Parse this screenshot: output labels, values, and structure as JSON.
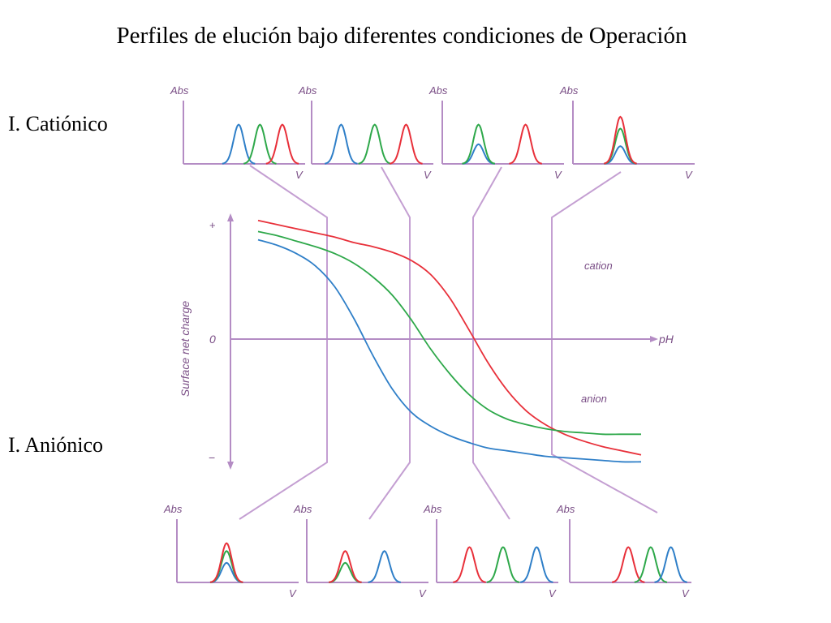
{
  "slide": {
    "title": "Perfiles de elución bajo diferentes condiciones de Operación",
    "label_cationic": "I. Catiónico",
    "label_anionic": "I. Aniónico"
  },
  "colors": {
    "axis": "#b48cc4",
    "red": "#e8303a",
    "green": "#2ea84a",
    "blue": "#2f7fc8"
  },
  "chart_data": [
    {
      "type": "line",
      "title": "",
      "xlabel": "pH",
      "ylabel": "Surface net charge",
      "y_ticks": [
        "+",
        "0",
        "−"
      ],
      "annotations": [
        "cation",
        "anion"
      ],
      "ylim": [
        -1,
        1
      ],
      "xlim": [
        0,
        1
      ],
      "x": [
        0,
        0.05,
        0.1,
        0.15,
        0.2,
        0.25,
        0.3,
        0.35,
        0.4,
        0.45,
        0.5,
        0.55,
        0.6,
        0.65,
        0.7,
        0.75,
        0.8,
        0.85,
        0.9,
        0.95,
        1.0
      ],
      "series": [
        {
          "color": "red",
          "values": [
            0.86,
            0.83,
            0.8,
            0.77,
            0.74,
            0.7,
            0.67,
            0.63,
            0.57,
            0.47,
            0.3,
            0.07,
            -0.17,
            -0.37,
            -0.52,
            -0.62,
            -0.69,
            -0.74,
            -0.78,
            -0.81,
            -0.84
          ]
        },
        {
          "color": "green",
          "values": [
            0.78,
            0.75,
            0.71,
            0.67,
            0.62,
            0.55,
            0.45,
            0.32,
            0.14,
            -0.07,
            -0.25,
            -0.4,
            -0.51,
            -0.58,
            -0.62,
            -0.65,
            -0.67,
            -0.68,
            -0.69,
            -0.69,
            -0.69
          ]
        },
        {
          "color": "blue",
          "values": [
            0.72,
            0.68,
            0.62,
            0.53,
            0.38,
            0.15,
            -0.12,
            -0.36,
            -0.53,
            -0.63,
            -0.7,
            -0.75,
            -0.79,
            -0.81,
            -0.83,
            -0.85,
            -0.86,
            -0.87,
            -0.88,
            -0.89,
            -0.89
          ]
        }
      ]
    },
    {
      "type": "line",
      "title": "",
      "xlabel": "V",
      "ylabel": "Abs",
      "group": "cationic elution profiles",
      "panels": [
        {
          "peaks": [
            {
              "color": "blue",
              "x": 0.45,
              "height": 1.0
            },
            {
              "color": "green",
              "x": 0.64,
              "height": 1.0
            },
            {
              "color": "red",
              "x": 0.84,
              "height": 1.0
            }
          ]
        },
        {
          "peaks": [
            {
              "color": "blue",
              "x": 0.22,
              "height": 1.0
            },
            {
              "color": "green",
              "x": 0.52,
              "height": 1.0
            },
            {
              "color": "red",
              "x": 0.8,
              "height": 1.0
            }
          ]
        },
        {
          "peaks": [
            {
              "color": "blue",
              "x": 0.28,
              "height": 0.5
            },
            {
              "color": "green",
              "x": 0.28,
              "height": 1.0
            },
            {
              "color": "red",
              "x": 0.7,
              "height": 1.0
            }
          ]
        },
        {
          "peaks": [
            {
              "color": "blue",
              "x": 0.38,
              "height": 0.45
            },
            {
              "color": "green",
              "x": 0.38,
              "height": 0.9
            },
            {
              "color": "red",
              "x": 0.38,
              "height": 1.2
            }
          ]
        }
      ]
    },
    {
      "type": "line",
      "title": "",
      "xlabel": "V",
      "ylabel": "Abs",
      "group": "anionic elution profiles",
      "panels": [
        {
          "peaks": [
            {
              "color": "blue",
              "x": 0.4,
              "height": 0.5
            },
            {
              "color": "green",
              "x": 0.4,
              "height": 0.8
            },
            {
              "color": "red",
              "x": 0.4,
              "height": 1.0
            }
          ]
        },
        {
          "peaks": [
            {
              "color": "blue",
              "x": 0.65,
              "height": 0.8
            },
            {
              "color": "green",
              "x": 0.3,
              "height": 0.5
            },
            {
              "color": "red",
              "x": 0.3,
              "height": 0.8
            }
          ]
        },
        {
          "peaks": [
            {
              "color": "red",
              "x": 0.25,
              "height": 0.9
            },
            {
              "color": "green",
              "x": 0.55,
              "height": 0.9
            },
            {
              "color": "blue",
              "x": 0.85,
              "height": 0.9
            }
          ]
        },
        {
          "peaks": [
            {
              "color": "red",
              "x": 0.48,
              "height": 0.9
            },
            {
              "color": "green",
              "x": 0.68,
              "height": 0.9
            },
            {
              "color": "blue",
              "x": 0.86,
              "height": 0.9
            }
          ]
        }
      ]
    }
  ]
}
